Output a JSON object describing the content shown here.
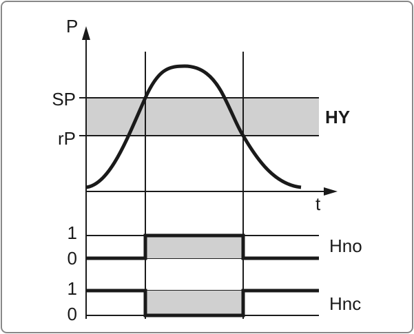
{
  "axes": {
    "y_label": "P",
    "x_label": "t"
  },
  "levels": {
    "sp": "SP",
    "rp": "rP",
    "band": "HY"
  },
  "outputs": [
    {
      "name": "Hno",
      "high": "1",
      "low": "0"
    },
    {
      "name": "Hnc",
      "high": "1",
      "low": "0"
    }
  ]
}
